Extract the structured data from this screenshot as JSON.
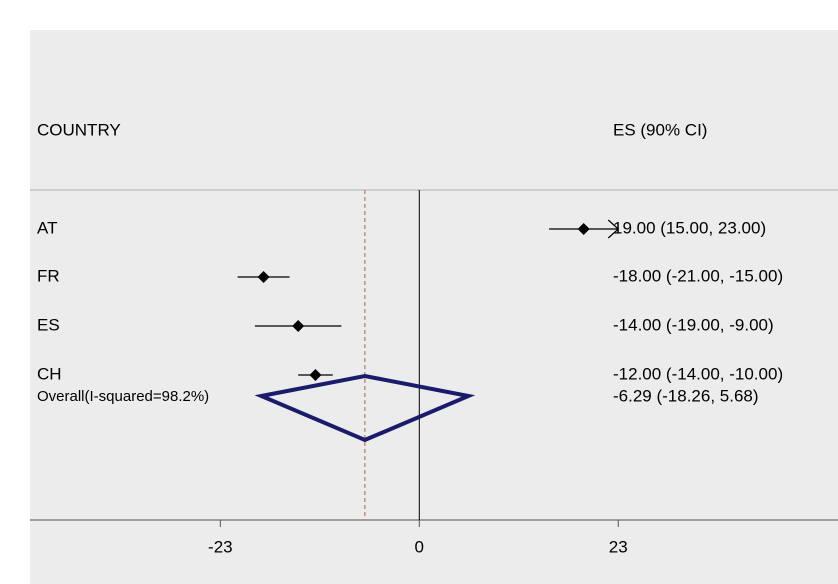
{
  "chart_data": {
    "type": "forest",
    "headers": {
      "label": "COUNTRY",
      "estimate": "ES (90% CI)"
    },
    "categories": [
      "AT",
      "FR",
      "ES",
      "CH"
    ],
    "estimates": [
      19,
      -18,
      -14,
      -12
    ],
    "lower": [
      15,
      -21,
      -19,
      -14
    ],
    "upper": [
      23,
      -15,
      -9,
      -10
    ],
    "value_labels": [
      "19.00 (15.00, 23.00)",
      "-18.00 (-21.00, -15.00)",
      "-14.00 (-19.00, -9.00)",
      "-12.00 (-14.00, -10.00)"
    ],
    "truncated": [
      true,
      false,
      false,
      false
    ],
    "marker_color": "#000000",
    "overall": {
      "label": "Overall(I-squared=98.2%)",
      "estimate": -6.29,
      "lower": -18.26,
      "upper": 5.68,
      "value_label": "-6.29 (-18.26, 5.68)",
      "color": "#1b1b6b",
      "line_color": "#b5796a"
    },
    "xlim": [
      -45,
      48.4
    ],
    "xticks": [
      -23,
      0,
      23
    ]
  }
}
